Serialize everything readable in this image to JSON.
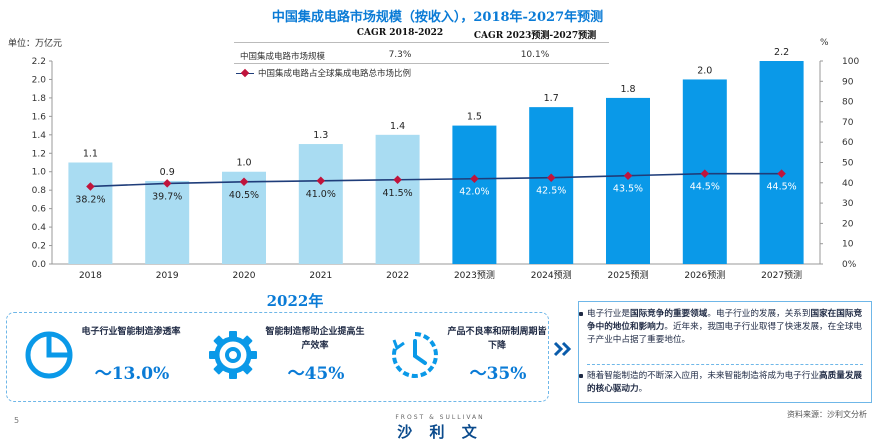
{
  "title": "中国集成电路市场规模（按收入），2018年-2027年预测",
  "unit_label": "单位：万亿元",
  "pct_unit": "%",
  "cagr": {
    "header_1": "CAGR 2018-2022",
    "header_2": "CAGR 2023预测-2027预测",
    "row_label": "中国集成电路市场规模",
    "value_1": "7.3%",
    "value_2": "10.1%"
  },
  "legend": {
    "line_label": "中国集成电路占全球集成电路总市场比例"
  },
  "colors": {
    "bar_actual": "#a9dcf2",
    "bar_forecast": "#0a99e8",
    "line": "#1f3d7a",
    "marker": "#c0143c",
    "accent": "#0a7bd6"
  },
  "chart_data": {
    "type": "bar",
    "categories": [
      "2018",
      "2019",
      "2020",
      "2021",
      "2022",
      "2023预测",
      "2024预测",
      "2025预测",
      "2026预测",
      "2027预测"
    ],
    "series": [
      {
        "values": [
          1.1,
          0.9,
          1.0,
          1.3,
          1.4,
          1.5,
          1.7,
          1.8,
          2.0,
          2.2
        ],
        "value_labels": [
          "1.1",
          "0.9",
          "1.0",
          "1.3",
          "1.4",
          "1.5",
          "1.7",
          "1.8",
          "2.0",
          "2.2"
        ],
        "forecast_from_index": 5
      },
      {
        "name": "中国集成电路占全球集成电路总市场比例",
        "type": "line",
        "axis": "right",
        "values": [
          38.2,
          39.7,
          40.5,
          41.0,
          41.5,
          42.0,
          42.5,
          43.5,
          44.5,
          44.5
        ],
        "value_labels": [
          "38.2%",
          "39.7%",
          "40.5%",
          "41.0%",
          "41.5%",
          "42.0%",
          "42.5%",
          "43.5%",
          "44.5%",
          "44.5%"
        ]
      }
    ],
    "y_left": {
      "min": 0,
      "max": 2.2,
      "ticks": [
        "0.0",
        "0.2",
        "0.4",
        "0.6",
        "0.8",
        "1.0",
        "1.2",
        "1.4",
        "1.6",
        "1.8",
        "2.0",
        "2.2"
      ]
    },
    "y_right": {
      "min": 0,
      "max": 100,
      "ticks": [
        "0%",
        "10",
        "20",
        "30",
        "40",
        "50",
        "60",
        "70",
        "80",
        "90",
        "100"
      ]
    }
  },
  "kpi_year": "2022年",
  "kpis": [
    {
      "label": "电子行业智能制造渗透率",
      "value": "～13.0%",
      "icon": "pie-chart-icon"
    },
    {
      "label": "智能制造帮助企业提高生产效率",
      "value": "～45%",
      "icon": "gear-icon"
    },
    {
      "label": "产品不良率和研制周期皆下降",
      "value": "～35%",
      "icon": "clock-icon"
    }
  ],
  "notes": [
    {
      "parts": [
        "电子行业是",
        "国际竞争的重要领域",
        "。电子行业的发展，关系到",
        "国家在国际竞争中的地位和影响力",
        "。近年来，我国电子行业取得了快速发展，在全球电子产业中占据了重要地位。"
      ]
    },
    {
      "parts": [
        "随着智能制造的不断深入应用，未来智能制造将成为电子行业",
        "高质量发展的核心驱动力",
        "。"
      ]
    }
  ],
  "source": "资料来源：沙利文分析",
  "page_number": "5",
  "footer_brand": "FROST & SULLIVAN",
  "footer_logo": "沙 利 文"
}
